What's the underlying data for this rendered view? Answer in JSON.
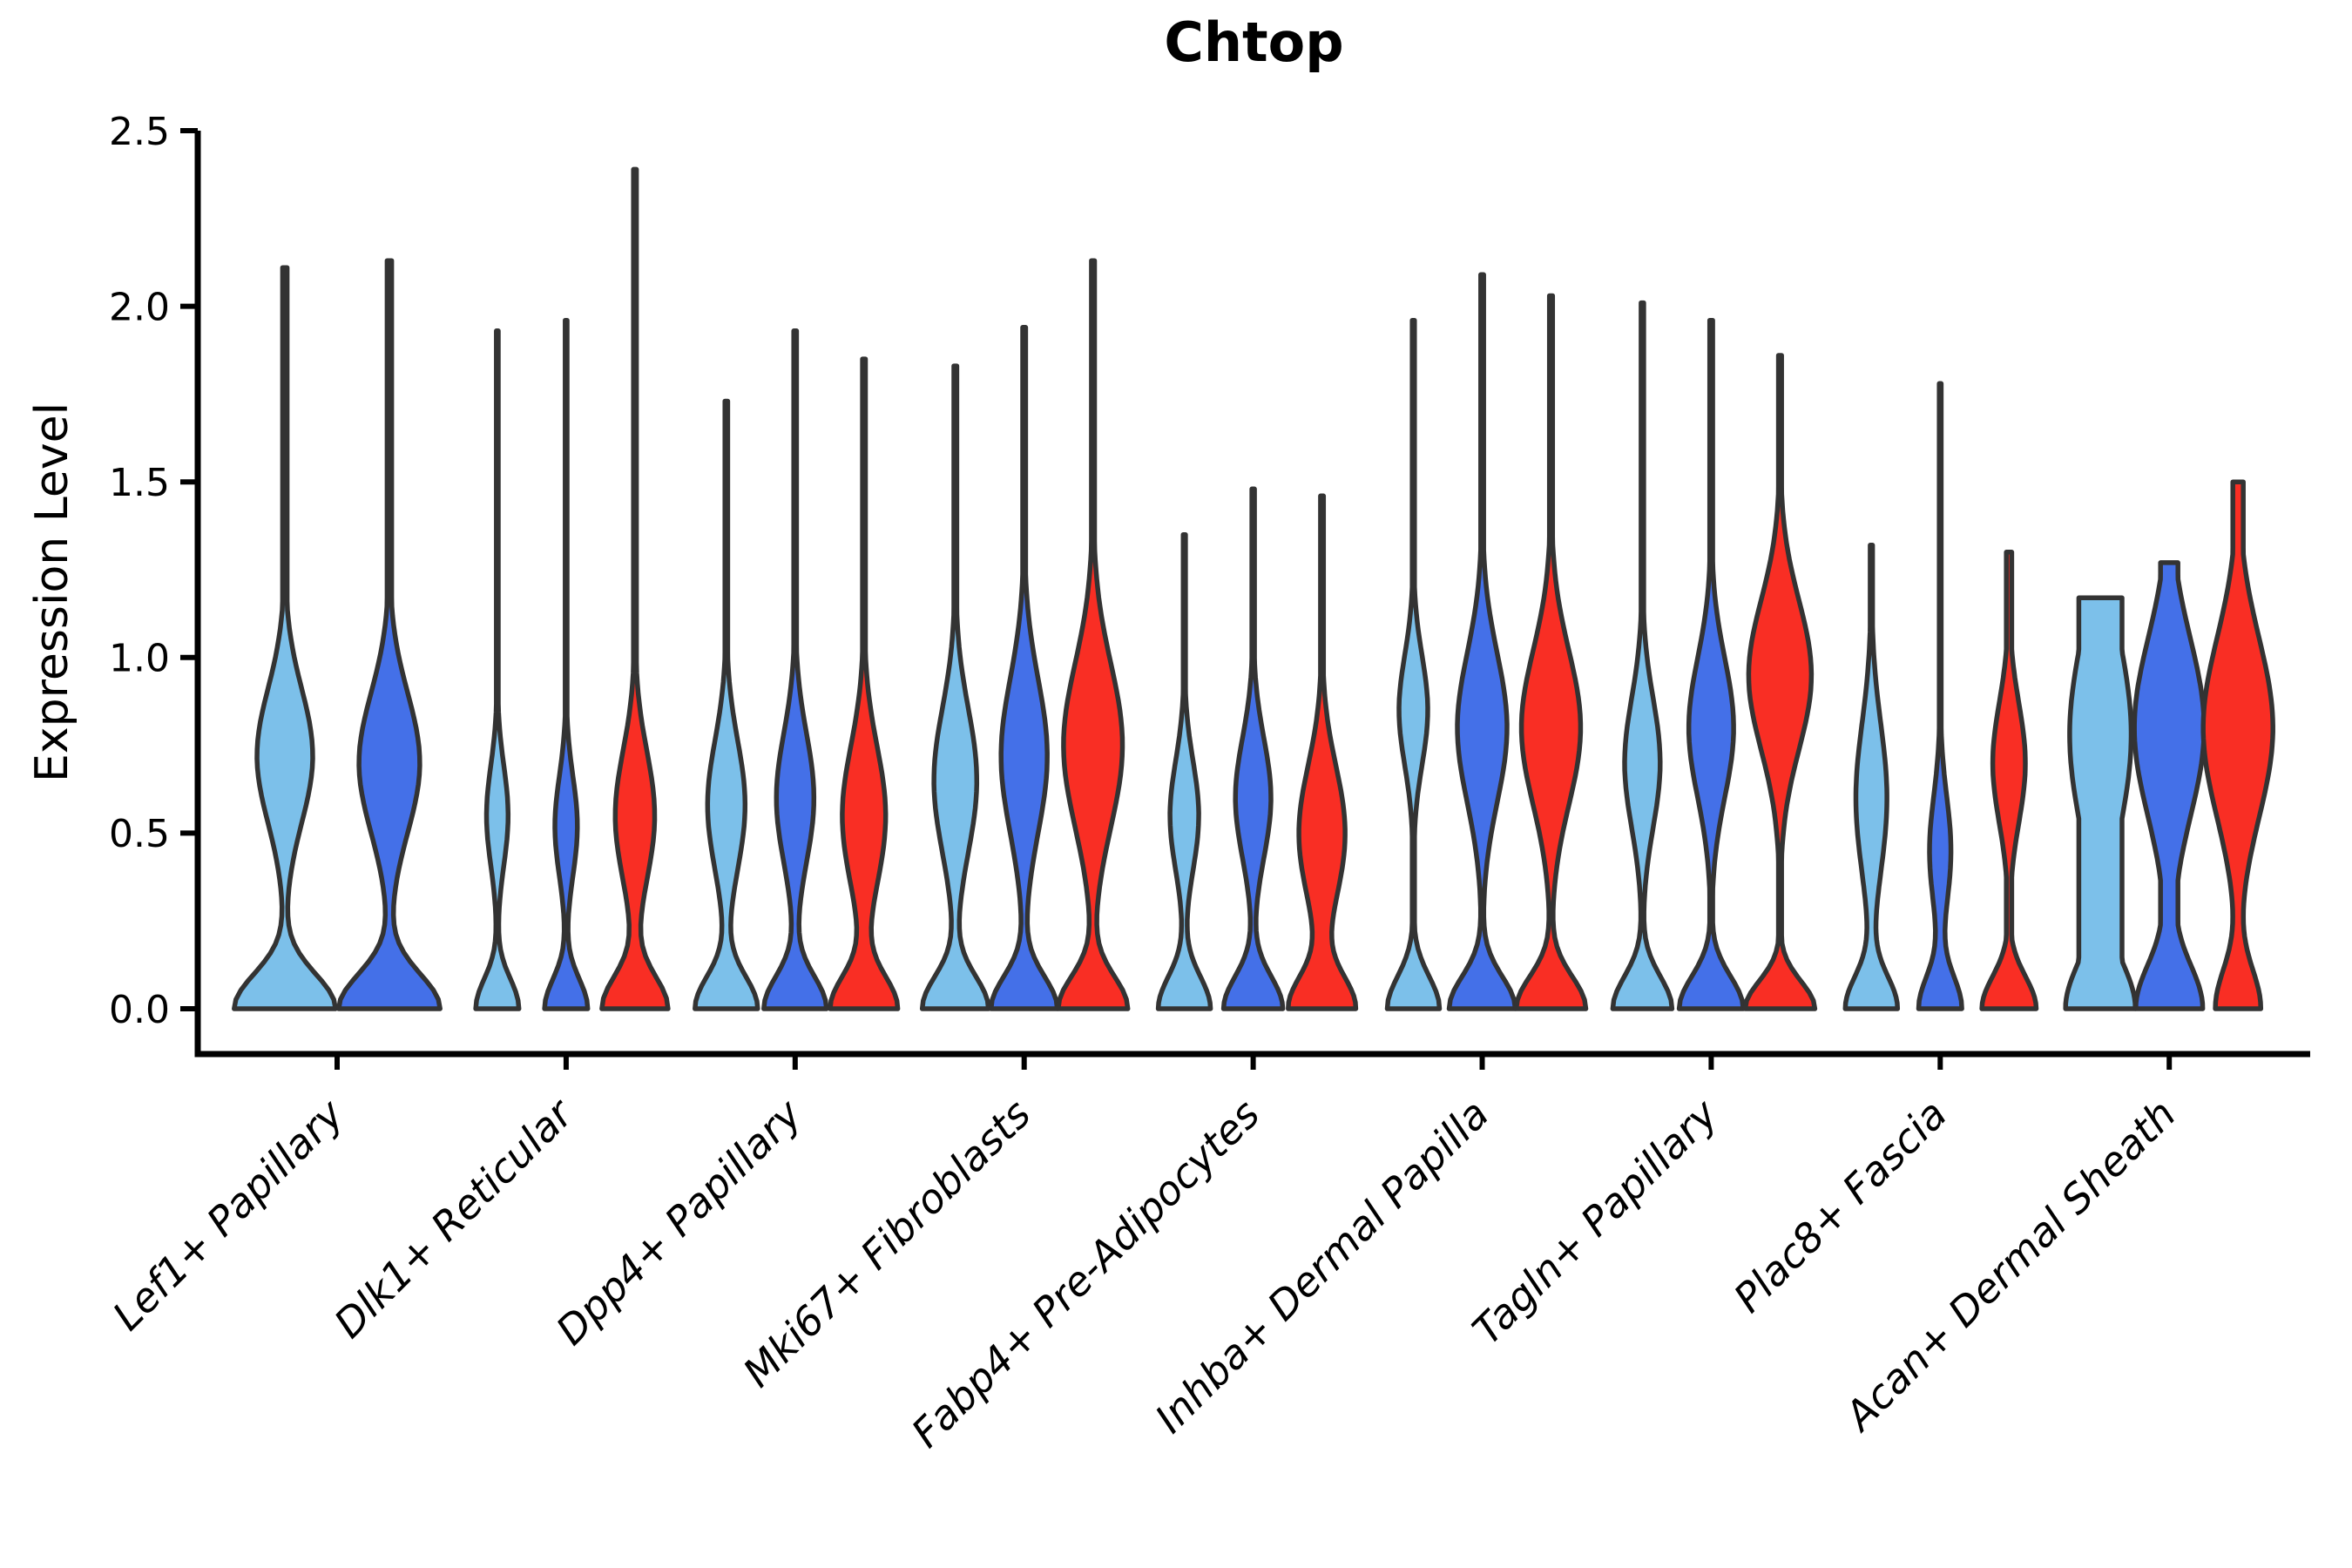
{
  "chart_data": {
    "type": "violin",
    "title": "Chtop",
    "ylabel": "Expression Level",
    "xlabel": "",
    "ylim": [
      0.0,
      2.5
    ],
    "yticks": [
      0.0,
      0.5,
      1.0,
      1.5,
      2.0,
      2.5
    ],
    "ytick_labels": [
      "0.0",
      "0.5",
      "1.0",
      "1.5",
      "2.0",
      "2.5"
    ],
    "grid": false,
    "legend": "none",
    "categories": [
      "Lef1+ Papillary",
      "Dlk1+ Reticular",
      "Dpp4+ Papillary",
      "Mki67+ Fibroblasts",
      "Fabp4+ Pre-Adipocytes",
      "Inhba+ Dermal Papilla",
      "Tagln+ Papillary",
      "Plac8+ Fascia",
      "Acan+ Dermal Sheath"
    ],
    "palette": {
      "light_blue": "#7CC0EA",
      "royal_blue": "#4470E8",
      "red": "#F92E24",
      "outline": "#333333",
      "axis": "#000000",
      "text": "#000000"
    },
    "groups": [
      {
        "category": "Lef1+ Papillary",
        "violins": [
          {
            "color": "light_blue",
            "max": 2.11,
            "mode": 0.72,
            "s0": 0.14,
            "s1": 0.27,
            "a1": 0.55,
            "cap": 0,
            "width": 0.97
          },
          {
            "color": "royal_blue",
            "max": 2.13,
            "mode": 0.7,
            "s0": 0.14,
            "s1": 0.28,
            "a1": 0.6,
            "cap": 0,
            "width": 0.97
          }
        ]
      },
      {
        "category": "Dlk1+ Reticular",
        "violins": [
          {
            "color": "light_blue",
            "max": 1.93,
            "mode": 0.55,
            "s0": 0.12,
            "s1": 0.2,
            "a1": 0.5,
            "cap": 0,
            "width": 0.62
          },
          {
            "color": "royal_blue",
            "max": 1.96,
            "mode": 0.52,
            "s0": 0.12,
            "s1": 0.2,
            "a1": 0.52,
            "cap": 0,
            "width": 0.62
          },
          {
            "color": "red",
            "max": 2.39,
            "mode": 0.55,
            "s0": 0.13,
            "s1": 0.26,
            "a1": 0.6,
            "cap": 0,
            "width": 0.95
          }
        ]
      },
      {
        "category": "Dpp4+ Papillary",
        "violins": [
          {
            "color": "light_blue",
            "max": 1.73,
            "mode": 0.58,
            "s0": 0.13,
            "s1": 0.26,
            "a1": 0.6,
            "cap": 0,
            "width": 0.9
          },
          {
            "color": "royal_blue",
            "max": 1.93,
            "mode": 0.6,
            "s0": 0.13,
            "s1": 0.26,
            "a1": 0.6,
            "cap": 0,
            "width": 0.9
          },
          {
            "color": "red",
            "max": 1.85,
            "mode": 0.55,
            "s0": 0.13,
            "s1": 0.28,
            "a1": 0.65,
            "cap": 0,
            "width": 0.97
          }
        ]
      },
      {
        "category": "Mki67+ Fibroblasts",
        "violins": [
          {
            "color": "light_blue",
            "max": 1.83,
            "mode": 0.65,
            "s0": 0.13,
            "s1": 0.29,
            "a1": 0.65,
            "cap": 0,
            "width": 0.95
          },
          {
            "color": "royal_blue",
            "max": 1.94,
            "mode": 0.72,
            "s0": 0.13,
            "s1": 0.31,
            "a1": 0.7,
            "cap": 0,
            "width": 0.95
          },
          {
            "color": "red",
            "max": 2.13,
            "mode": 0.75,
            "s0": 0.13,
            "s1": 0.33,
            "a1": 0.85,
            "cap": 0,
            "width": 1.0
          }
        ]
      },
      {
        "category": "Fabp4+ Pre-Adipocytes",
        "violins": [
          {
            "color": "light_blue",
            "max": 1.35,
            "mode": 0.55,
            "s0": 0.13,
            "s1": 0.22,
            "a1": 0.55,
            "cap": 0,
            "width": 0.75
          },
          {
            "color": "royal_blue",
            "max": 1.48,
            "mode": 0.6,
            "s0": 0.13,
            "s1": 0.24,
            "a1": 0.6,
            "cap": 0,
            "width": 0.85
          },
          {
            "color": "red",
            "max": 1.46,
            "mode": 0.5,
            "s0": 0.13,
            "s1": 0.27,
            "a1": 0.7,
            "cap": 0,
            "width": 0.97
          }
        ]
      },
      {
        "category": "Inhba+ Dermal Papilla",
        "violins": [
          {
            "color": "light_blue",
            "max": 1.96,
            "mode": 0.85,
            "s0": 0.13,
            "s1": 0.22,
            "a1": 0.55,
            "cap": 0,
            "width": 0.75
          },
          {
            "color": "royal_blue",
            "max": 2.09,
            "mode": 0.8,
            "s0": 0.13,
            "s1": 0.3,
            "a1": 0.75,
            "cap": 0,
            "width": 0.95
          },
          {
            "color": "red",
            "max": 2.03,
            "mode": 0.8,
            "s0": 0.13,
            "s1": 0.31,
            "a1": 0.85,
            "cap": 0,
            "width": 1.0
          }
        ]
      },
      {
        "category": "Tagln+ Papillary",
        "violins": [
          {
            "color": "light_blue",
            "max": 2.01,
            "mode": 0.7,
            "s0": 0.13,
            "s1": 0.26,
            "a1": 0.6,
            "cap": 0,
            "width": 0.85
          },
          {
            "color": "royal_blue",
            "max": 1.96,
            "mode": 0.8,
            "s0": 0.13,
            "s1": 0.28,
            "a1": 0.7,
            "cap": 0,
            "width": 0.92
          },
          {
            "color": "red",
            "max": 1.86,
            "mode": 0.95,
            "s0": 0.11,
            "s1": 0.3,
            "a1": 0.9,
            "cap": 0,
            "width": 1.0
          }
        ]
      },
      {
        "category": "Plac8+ Fascia",
        "violins": [
          {
            "color": "light_blue",
            "max": 1.32,
            "mode": 0.6,
            "s0": 0.13,
            "s1": 0.3,
            "a1": 0.6,
            "cap": 0,
            "width": 0.75
          },
          {
            "color": "royal_blue",
            "max": 1.78,
            "mode": 0.45,
            "s0": 0.13,
            "s1": 0.22,
            "a1": 0.5,
            "cap": 0,
            "width": 0.62
          },
          {
            "color": "red",
            "max": 1.3,
            "mode": 0.7,
            "s0": 0.13,
            "s1": 0.24,
            "a1": 0.6,
            "cap": 0.1,
            "width": 0.78
          }
        ]
      },
      {
        "category": "Acan+ Dermal Sheath",
        "violins": [
          {
            "color": "light_blue",
            "max": 1.17,
            "mode": 0.78,
            "s0": 0.18,
            "s1": 0.4,
            "a1": 0.9,
            "cap": 0.62,
            "width": 1.0
          },
          {
            "color": "royal_blue",
            "max": 1.27,
            "mode": 0.8,
            "s0": 0.18,
            "s1": 0.36,
            "a1": 1.05,
            "cap": 0.25,
            "width": 1.0
          },
          {
            "color": "red",
            "max": 1.5,
            "mode": 0.8,
            "s0": 0.16,
            "s1": 0.36,
            "a1": 1.55,
            "cap": 0.15,
            "width": 1.0
          }
        ]
      }
    ]
  }
}
